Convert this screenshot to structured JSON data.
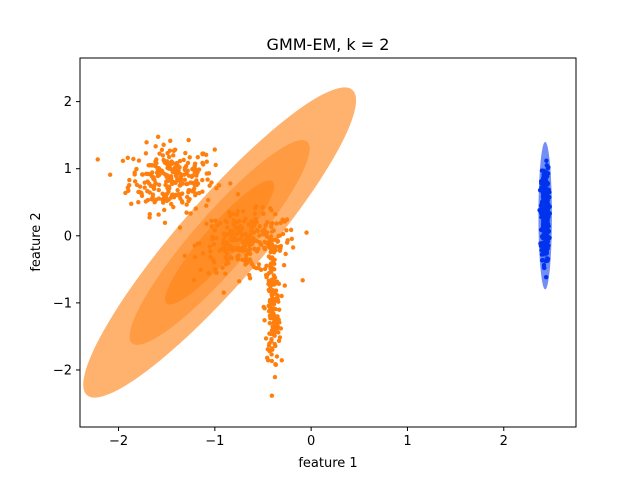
{
  "chart_data": {
    "type": "scatter",
    "title": "GMM-EM, k = 2",
    "xlabel": "feature 1",
    "ylabel": "feature 2",
    "xlim": [
      -2.4,
      2.75
    ],
    "ylim": [
      -2.85,
      2.65
    ],
    "xticks": [
      -2,
      -1,
      0,
      1,
      2
    ],
    "yticks": [
      -2,
      -1,
      0,
      1,
      2
    ],
    "xtick_labels": [
      "−2",
      "−1",
      "0",
      "1",
      "2"
    ],
    "ytick_labels": [
      "−2",
      "−1",
      "0",
      "1",
      "2"
    ],
    "grid": false,
    "legend": "none",
    "series": [
      {
        "color": "#ff7f0e",
        "clusters": [
          {
            "center": [
              -1.45,
              0.85
            ],
            "spread": [
              0.22,
              0.25
            ],
            "n": 260
          },
          {
            "center": [
              -0.65,
              -0.1
            ],
            "spread": [
              0.25,
              0.22
            ],
            "n": 260
          },
          {
            "center": [
              -0.4,
              -1.1
            ],
            "spread": [
              0.04,
              0.45
            ],
            "n": 140
          }
        ],
        "gaussian": {
          "mean": [
            -0.95,
            -0.1
          ],
          "width": 4.2,
          "height": 1.25,
          "angle_deg": -49
        },
        "ellipse_scales": [
          1,
          1.65,
          2.5
        ],
        "ellipse_opacities": [
          0.55,
          0.45,
          0.6
        ]
      },
      {
        "color": "#0033ee",
        "clusters": [
          {
            "center": [
              2.43,
              0.3
            ],
            "spread": [
              0.02,
              0.35
            ],
            "n": 300
          }
        ],
        "gaussian": {
          "mean": [
            2.43,
            0.3
          ],
          "width": 0.14,
          "height": 2.2,
          "angle_deg": 0
        },
        "ellipse_scales": [
          1,
          0.62
        ],
        "ellipse_opacities": [
          0.55,
          0.4
        ]
      }
    ]
  }
}
